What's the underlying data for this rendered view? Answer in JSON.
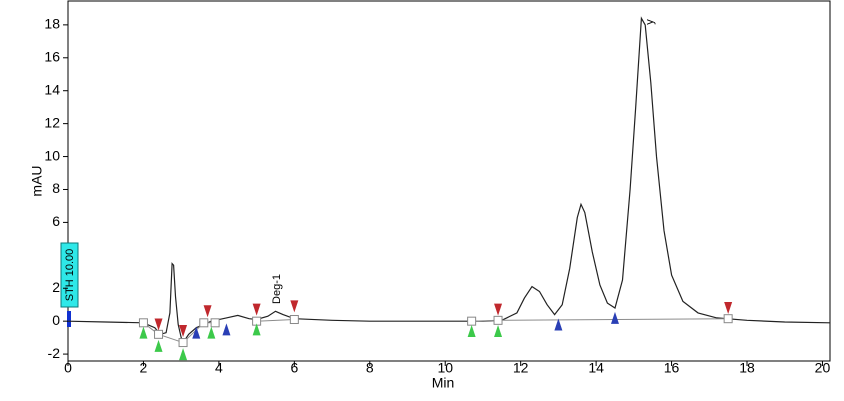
{
  "chart_data": {
    "type": "line",
    "x_label": "Min",
    "y_label": "mAU",
    "annotations": [
      "Deg-1",
      "y",
      "STH 10.00"
    ],
    "xlim": [
      0,
      20.2
    ],
    "ylim": [
      -2.42,
      19.45
    ],
    "xticks": [
      0,
      2,
      4,
      6,
      8,
      10,
      12,
      14,
      16,
      18,
      20
    ],
    "yticks": [
      -2,
      0,
      2,
      6,
      8,
      10,
      12,
      14,
      16,
      18
    ],
    "traces": [
      {
        "color": "#222222",
        "width": 1.2,
        "x": [
          0,
          1,
          2,
          2.3,
          2.45,
          2.6,
          2.7,
          2.76,
          2.8,
          2.85,
          2.92,
          3.0,
          3.05,
          3.2,
          3.4,
          3.6,
          3.8,
          4.2,
          4.5,
          4.8,
          5.0,
          5.3,
          5.5,
          5.7,
          6.0,
          7,
          8,
          9,
          10,
          11,
          11.5,
          11.9,
          12.1,
          12.3,
          12.5,
          12.7,
          12.9,
          13.1,
          13.3,
          13.5,
          13.6,
          13.7,
          13.9,
          14.1,
          14.3,
          14.5,
          14.7,
          14.9,
          15.05,
          15.2,
          15.3,
          15.45,
          15.6,
          15.8,
          16.0,
          16.3,
          16.7,
          17.2,
          18,
          19,
          20.2
        ],
        "y": [
          0,
          -0.05,
          -0.1,
          -0.4,
          -0.8,
          -0.7,
          0.5,
          3.5,
          3.4,
          1.5,
          -0.2,
          -1.0,
          -1.3,
          -0.8,
          -0.4,
          -0.2,
          0,
          0.2,
          0.35,
          0.15,
          0.1,
          0.3,
          0.6,
          0.4,
          0.15,
          0.05,
          0,
          0,
          0,
          0,
          0.05,
          0.5,
          1.4,
          2.1,
          1.8,
          1.0,
          0.4,
          1.0,
          3.2,
          6.3,
          7.1,
          6.6,
          4.2,
          2.2,
          1.1,
          0.8,
          2.5,
          8.0,
          13.0,
          18.4,
          18.0,
          14.5,
          10.0,
          5.5,
          2.8,
          1.2,
          0.5,
          0.2,
          0.05,
          -0.05,
          -0.1
        ]
      },
      {
        "color": "#8c8c8c",
        "width": 1,
        "x": [
          2.0,
          2.4,
          3.05,
          3.6,
          3.9,
          null,
          5.0,
          6.0,
          null,
          10.7,
          11.4,
          17.5
        ],
        "y": [
          -0.1,
          -0.8,
          -1.3,
          -0.1,
          -0.1,
          null,
          0,
          0.1,
          null,
          0,
          0.05,
          0.15
        ]
      }
    ],
    "markers": [
      {
        "shape": "square",
        "color": "#888888",
        "x": [
          2.0,
          2.4,
          3.05,
          3.6,
          3.9,
          5.0,
          6.0,
          10.7,
          11.4,
          17.5
        ],
        "y": [
          -0.1,
          -0.8,
          -1.3,
          -0.1,
          -0.1,
          0,
          0.1,
          0,
          0.05,
          0.15
        ]
      },
      {
        "shape": "triangle-up",
        "color": "#3cc94a",
        "x": [
          2.0,
          2.4,
          3.05,
          3.8,
          5.0,
          10.7,
          11.4
        ],
        "y": [
          -0.7,
          -1.5,
          -2.0,
          -0.7,
          -0.5,
          -0.6,
          -0.6
        ]
      },
      {
        "shape": "triangle-down",
        "color": "#c0282d",
        "x": [
          2.4,
          3.05,
          3.7,
          5.0,
          6.0,
          11.4,
          17.5
        ],
        "y": [
          -0.2,
          -0.6,
          0.6,
          0.7,
          0.9,
          0.7,
          0.8
        ]
      },
      {
        "shape": "triangle-up",
        "color": "#2a3fb5",
        "x": [
          3.4,
          4.2,
          13.0,
          14.5
        ],
        "y": [
          -0.7,
          -0.5,
          -0.2,
          0.2
        ]
      }
    ]
  }
}
